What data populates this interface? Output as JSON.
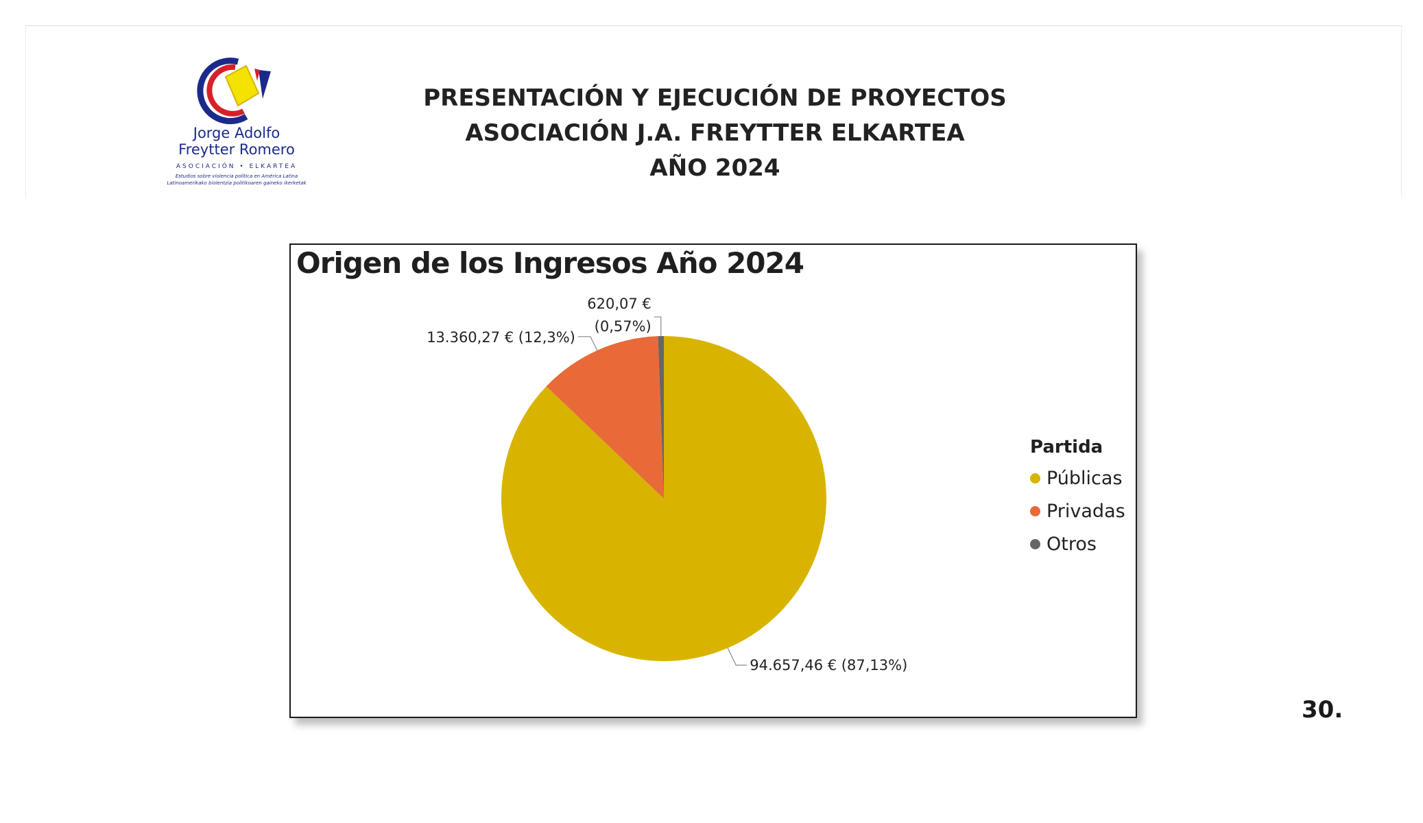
{
  "logo": {
    "name_line1": "Jorge Adolfo",
    "name_line2": "Freytter Romero",
    "association": "ASOCIACIÓN • ELKARTEA",
    "tagline1": "Estudios sobre violencia política en América Latina",
    "tagline2": "Latinoamerikako biolentzia politikoaren gaineko ikerketak",
    "colors": {
      "blue": "#1b2a8a",
      "red": "#d6202a",
      "yellow": "#f4e200"
    }
  },
  "header": {
    "line1": "PRESENTACIÓN Y EJECUCIÓN DE PROYECTOS",
    "line2": "ASOCIACIÓN J.A. FREYTTER ELKARTEA",
    "line3": "AÑO 2024"
  },
  "chart_data": {
    "type": "pie",
    "title": "Origen de los Ingresos Año 2024",
    "legend_title": "Partida",
    "legend_position": "right",
    "series": [
      {
        "name": "Públicas",
        "value": 94657.46,
        "percent": 87.13,
        "color": "#d8b400",
        "label": "94.657,46 € (87,13%)"
      },
      {
        "name": "Privadas",
        "value": 13360.27,
        "percent": 12.3,
        "color": "#e86a39",
        "label": "13.360,27 € (12,3%)"
      },
      {
        "name": "Otros",
        "value": 620.07,
        "percent": 0.57,
        "color": "#666666",
        "label_line1": "620,07 €",
        "label_line2": "(0,57%)"
      }
    ]
  },
  "page_number": "30."
}
